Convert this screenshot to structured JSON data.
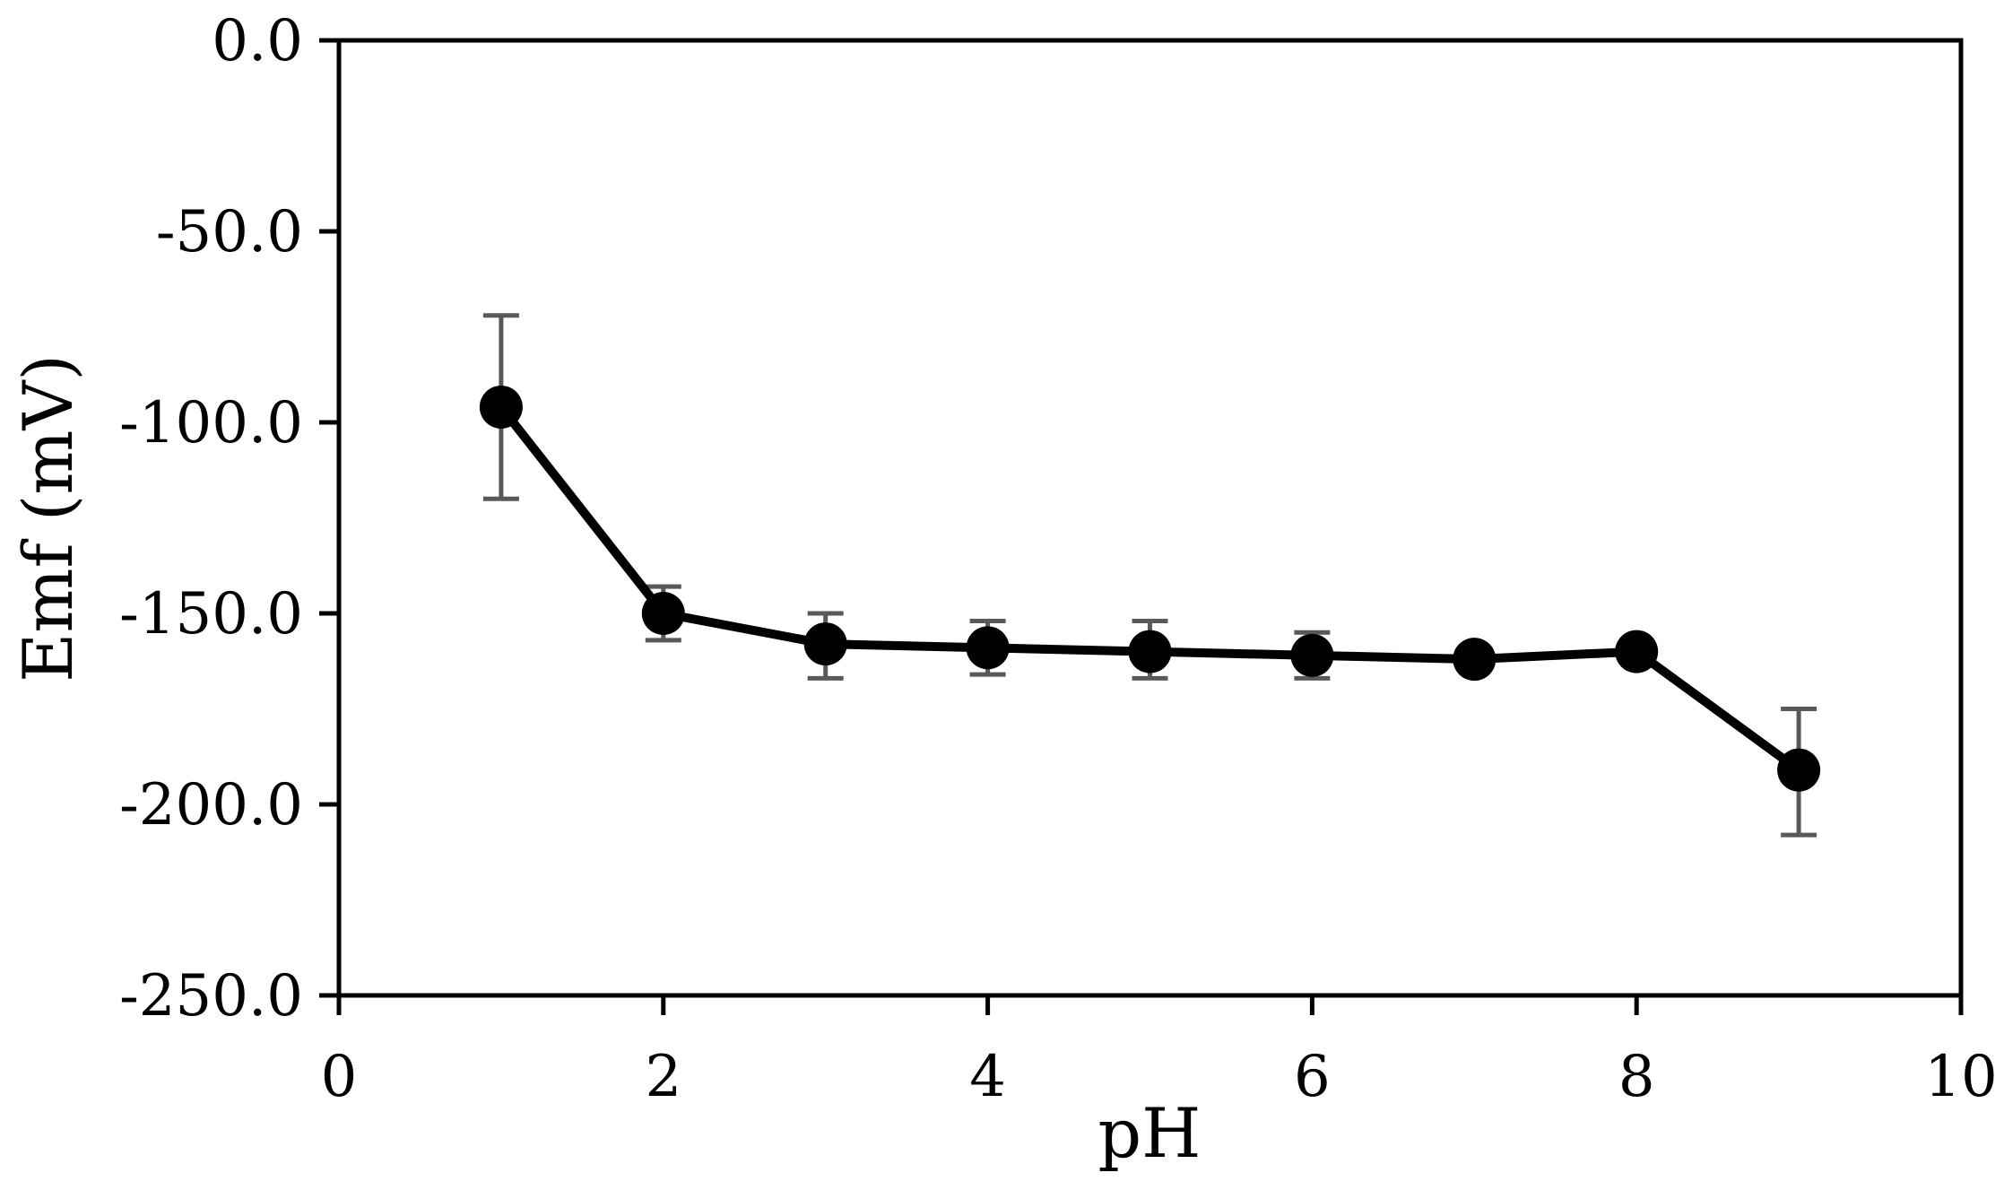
{
  "chart_data": {
    "type": "line",
    "title": "",
    "xlabel": "pH",
    "ylabel": "Emf (mV)",
    "xlim": [
      0,
      10
    ],
    "ylim": [
      -250,
      0
    ],
    "x_ticks": [
      0,
      2,
      4,
      6,
      8,
      10
    ],
    "x_tick_labels": [
      "0",
      "2",
      "4",
      "6",
      "8",
      "10"
    ],
    "y_ticks": [
      0,
      -50,
      -100,
      -150,
      -200,
      -250
    ],
    "y_tick_labels": [
      "0.0",
      "-50.0",
      "-100.0",
      "-150.0",
      "-200.0",
      "-250.0"
    ],
    "grid": false,
    "legend": "none",
    "series": [
      {
        "x": [
          1,
          2,
          3,
          4,
          5,
          6,
          7,
          8,
          9
        ],
        "y": [
          -96,
          -150,
          -158,
          -159,
          -160,
          -161,
          -162,
          -160,
          -191
        ],
        "error_low": [
          -120,
          -157,
          -167,
          -166,
          -167,
          -167,
          -162,
          -160,
          -208
        ],
        "error_high": [
          -72,
          -143,
          -150,
          -152,
          -152,
          -155,
          -162,
          -160,
          -175
        ],
        "color": "#000000",
        "error_color": "#595959"
      }
    ]
  }
}
